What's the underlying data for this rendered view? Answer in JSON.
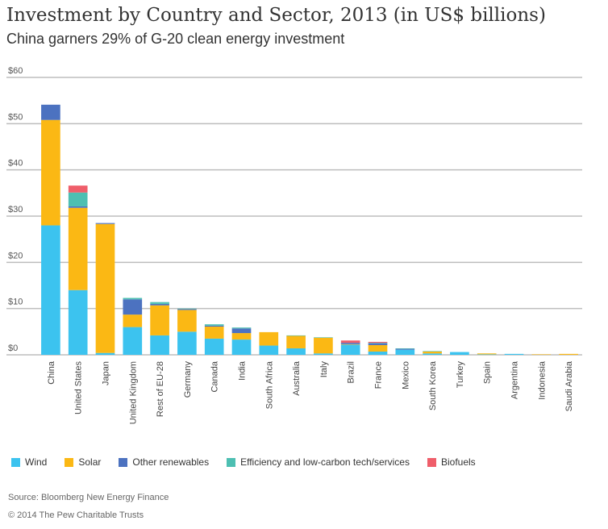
{
  "chart_data": {
    "type": "bar",
    "stacked": true,
    "title": "Investment by Country and Sector, 2013 (in US$ billions)",
    "subtitle": "China garners 29% of G-20 clean energy investment",
    "ylim": [
      0,
      60
    ],
    "yticks": [
      0,
      10,
      20,
      30,
      40,
      50,
      60
    ],
    "ytick_labels": [
      "$0",
      "$10",
      "$20",
      "$30",
      "$40",
      "$50",
      "$60"
    ],
    "grid": true,
    "legend_position": "bottom",
    "categories": [
      "China",
      "United States",
      "Japan",
      "United Kingdom",
      "Rest of EU-28",
      "Germany",
      "Canada",
      "India",
      "South Africa",
      "Australia",
      "Italy",
      "Brazil",
      "France",
      "Mexico",
      "South Korea",
      "Turkey",
      "Spain",
      "Argentina",
      "Indonesia",
      "Saudi Arabia"
    ],
    "series": [
      {
        "name": "Wind",
        "color": "#3cc3ef",
        "values": [
          28.0,
          14.0,
          0.4,
          6.0,
          4.2,
          5.0,
          3.5,
          3.3,
          2.0,
          1.4,
          0.3,
          2.2,
          0.7,
          1.1,
          0.3,
          0.6,
          0.1,
          0.2,
          0.0,
          0.0
        ]
      },
      {
        "name": "Solar",
        "color": "#fbb814",
        "values": [
          22.8,
          17.8,
          27.9,
          2.7,
          6.5,
          4.7,
          2.6,
          1.4,
          2.9,
          2.7,
          3.4,
          0.1,
          1.4,
          0.0,
          0.4,
          0.0,
          0.2,
          0.0,
          0.1,
          0.2
        ]
      },
      {
        "name": "Other renewables",
        "color": "#4c72c0",
        "values": [
          3.3,
          0.3,
          0.2,
          3.3,
          0.3,
          0.2,
          0.2,
          1.0,
          0.0,
          0.0,
          0.0,
          0.3,
          0.4,
          0.2,
          0.0,
          0.0,
          0.0,
          0.0,
          0.0,
          0.0
        ]
      },
      {
        "name": "Efficiency and low-carbon tech/services",
        "color": "#4dbfb2",
        "values": [
          0.0,
          3.0,
          0.0,
          0.3,
          0.4,
          0.1,
          0.3,
          0.2,
          0.0,
          0.1,
          0.1,
          0.0,
          0.1,
          0.1,
          0.1,
          0.0,
          0.0,
          0.0,
          0.0,
          0.0
        ]
      },
      {
        "name": "Biofuels",
        "color": "#ef5e6a",
        "values": [
          0.0,
          1.5,
          0.0,
          0.0,
          0.0,
          0.0,
          0.0,
          0.0,
          0.0,
          0.0,
          0.0,
          0.5,
          0.2,
          0.0,
          0.0,
          0.0,
          0.0,
          0.0,
          0.0,
          0.0
        ]
      }
    ]
  },
  "footer": {
    "source": "Source: Bloomberg New Energy Finance",
    "copyright": "© 2014 The Pew Charitable Trusts"
  }
}
